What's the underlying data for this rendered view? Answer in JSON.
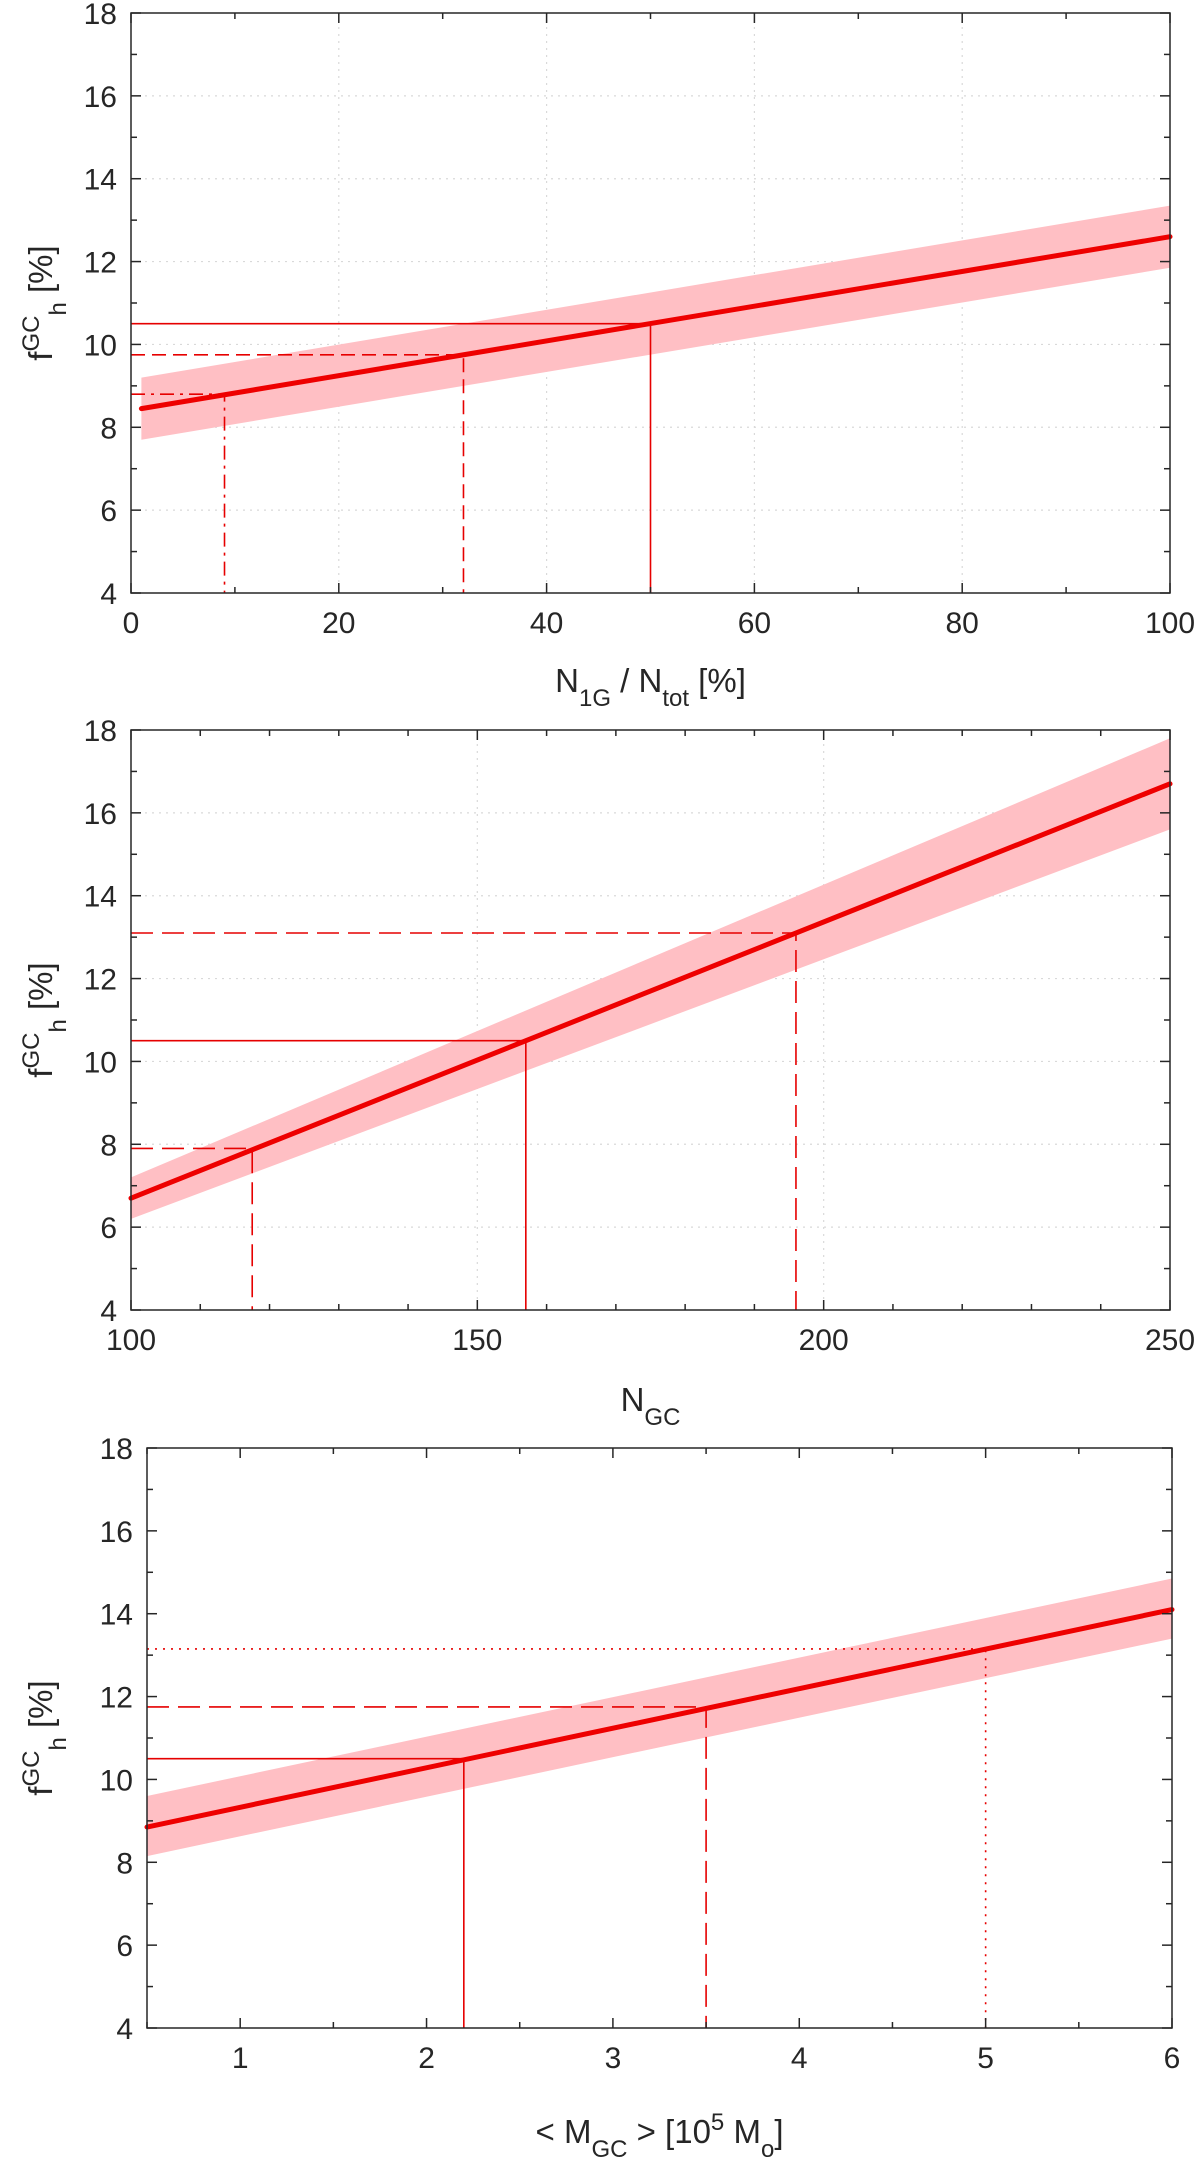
{
  "chart_data": [
    {
      "type": "line",
      "xlim": [
        0,
        100
      ],
      "ylim": [
        4,
        18
      ],
      "xticks": [
        0,
        20,
        40,
        60,
        80,
        100
      ],
      "xminor": [
        10,
        30,
        50,
        70,
        90
      ],
      "yticks": [
        4,
        6,
        8,
        10,
        12,
        14,
        16,
        18
      ],
      "xlabel": {
        "main": "N",
        "sub1": "1G",
        "mid": " / N",
        "sub2": "tot",
        "tail": " [%]"
      },
      "ylabel": {
        "main": "f",
        "sup": "GC",
        "sub": "h",
        "tail": " [%]"
      },
      "grid": true,
      "fit": {
        "x": [
          1,
          100
        ],
        "y": [
          8.45,
          12.6
        ]
      },
      "band": {
        "x": [
          1,
          100
        ],
        "lower": [
          7.7,
          11.85
        ],
        "upper": [
          9.2,
          13.35
        ]
      },
      "guides": [
        {
          "x": 9,
          "y": 8.8,
          "style": "dashdot"
        },
        {
          "x": 32,
          "y": 9.75,
          "style": "dashed"
        },
        {
          "x": 50,
          "y": 10.5,
          "style": "solid"
        }
      ]
    },
    {
      "type": "line",
      "xlim": [
        100,
        250
      ],
      "ylim": [
        4,
        18
      ],
      "xticks": [
        100,
        150,
        200,
        250
      ],
      "xminor": [
        110,
        120,
        130,
        140,
        160,
        170,
        180,
        190,
        210,
        220,
        230,
        240
      ],
      "yticks": [
        4,
        6,
        8,
        10,
        12,
        14,
        16,
        18
      ],
      "xlabel": {
        "main": "N",
        "sub1": "GC"
      },
      "ylabel": {
        "main": "f",
        "sup": "GC",
        "sub": "h",
        "tail": " [%]"
      },
      "grid": true,
      "fit": {
        "x": [
          100,
          250
        ],
        "y": [
          6.7,
          16.7
        ]
      },
      "band": {
        "x": [
          100,
          250
        ],
        "lower": [
          6.2,
          15.6
        ],
        "upper": [
          7.2,
          17.8
        ]
      },
      "guides": [
        {
          "x": 117.5,
          "y": 7.9,
          "style": "longdash"
        },
        {
          "x": 157,
          "y": 10.5,
          "style": "solid"
        },
        {
          "x": 196,
          "y": 13.1,
          "style": "longdash"
        }
      ]
    },
    {
      "type": "line",
      "xlim": [
        0.5,
        6
      ],
      "ylim": [
        4,
        18
      ],
      "xticks": [
        1,
        2,
        3,
        4,
        5,
        6
      ],
      "xminor": [
        0.5,
        1.5,
        2.5,
        3.5,
        4.5,
        5.5
      ],
      "yticks": [
        4,
        6,
        8,
        10,
        12,
        14,
        16,
        18
      ],
      "xlabel": {
        "main": "< M",
        "sub1": "GC",
        "mid": " >  [10",
        "sup": "5",
        "mid2": " M",
        "sub2": "o",
        "tail": "]"
      },
      "ylabel": {
        "main": "f",
        "sup": "GC",
        "sub": "h",
        "tail": " [%]"
      },
      "grid": false,
      "fit": {
        "x": [
          0.5,
          6
        ],
        "y": [
          8.85,
          14.1
        ]
      },
      "band": {
        "x": [
          0.5,
          6
        ],
        "lower": [
          8.15,
          13.4
        ],
        "upper": [
          9.6,
          14.85
        ]
      },
      "guides": [
        {
          "x": 2.2,
          "y": 10.5,
          "style": "solid"
        },
        {
          "x": 3.5,
          "y": 11.75,
          "style": "longdash"
        },
        {
          "x": 5.0,
          "y": 13.15,
          "style": "dotted"
        }
      ]
    }
  ]
}
